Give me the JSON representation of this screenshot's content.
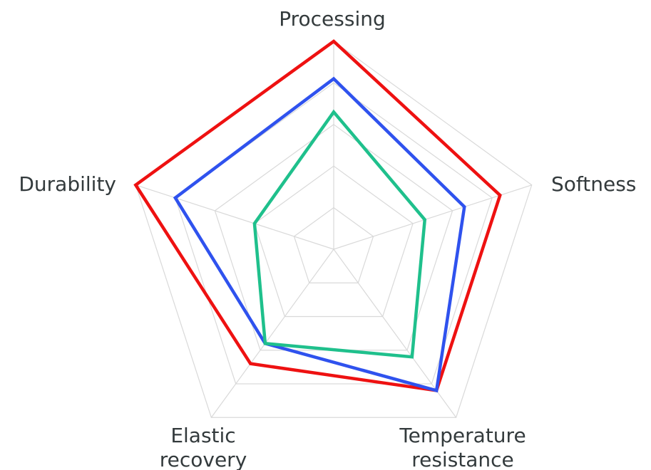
{
  "chart_data": {
    "type": "radar",
    "axes": [
      {
        "lines": [
          "Processing"
        ]
      },
      {
        "lines": [
          "Softness"
        ]
      },
      {
        "lines": [
          "Temperature",
          "resistance"
        ]
      },
      {
        "lines": [
          "Elastic",
          "recovery"
        ]
      },
      {
        "lines": [
          "Durability"
        ]
      }
    ],
    "rmax": 5,
    "grid_levels": 5,
    "grid": true,
    "legend": "none",
    "series": [
      {
        "color": "#ee1111",
        "values": [
          5.0,
          4.2,
          4.2,
          3.4,
          5.0
        ]
      },
      {
        "color": "#2f52ee",
        "values": [
          4.1,
          3.3,
          4.2,
          2.8,
          4.0
        ]
      },
      {
        "color": "#1fc08c",
        "values": [
          3.3,
          2.3,
          3.2,
          2.8,
          2.0
        ]
      }
    ]
  }
}
